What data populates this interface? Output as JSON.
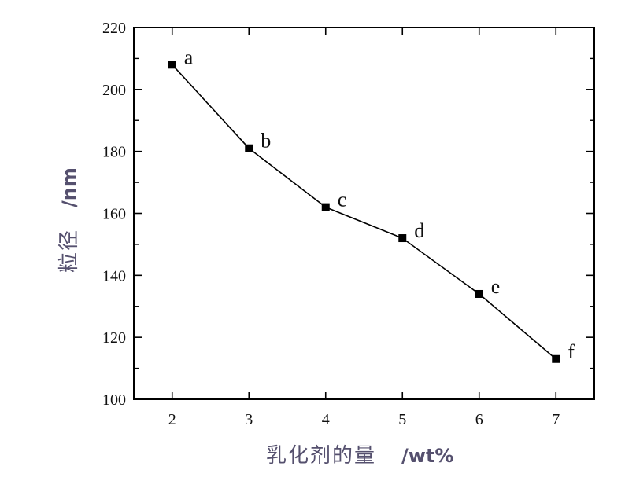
{
  "chart_data": {
    "type": "line",
    "x": [
      2,
      3,
      4,
      5,
      6,
      7
    ],
    "series": [
      {
        "values": [
          208,
          181,
          162,
          152,
          134,
          113
        ],
        "point_labels": [
          "a",
          "b",
          "c",
          "d",
          "e",
          "f"
        ]
      }
    ],
    "xlabel": "乳化剂的量",
    "xlabel_unit": "/wt%",
    "ylabel": "粒径",
    "ylabel_unit": "/nm",
    "xlim": [
      1.5,
      7.5
    ],
    "ylim": [
      100,
      220
    ],
    "xticks": [
      2,
      3,
      4,
      5,
      6,
      7
    ],
    "yticks": [
      100,
      120,
      140,
      160,
      180,
      200,
      220
    ],
    "grid": false,
    "legend": false,
    "line_color": "#000000",
    "label_color": "#55506e"
  }
}
